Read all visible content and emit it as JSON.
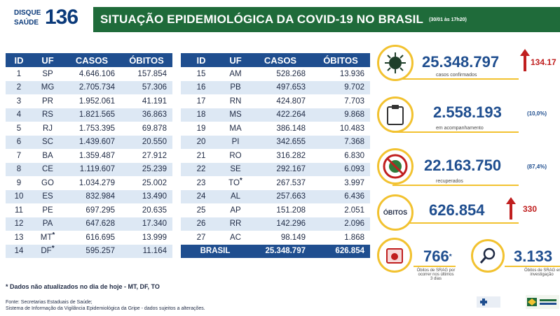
{
  "header": {
    "logo_top": "DISQUE",
    "logo_bottom": "SAÚDE",
    "logo_number": "136",
    "title": "SITUAÇÃO EPIDEMIOLÓGICA DA COVID-19 NO BRASIL",
    "date": "(30/01 às 17h20)"
  },
  "columns": {
    "id": "ID",
    "uf": "UF",
    "casos": "CASOS",
    "obitos": "ÓBITOS"
  },
  "table_left": [
    {
      "id": "1",
      "uf": "SP",
      "casos": "4.646.106",
      "obitos": "157.854",
      "star": ""
    },
    {
      "id": "2",
      "uf": "MG",
      "casos": "2.705.734",
      "obitos": "57.306",
      "star": ""
    },
    {
      "id": "3",
      "uf": "PR",
      "casos": "1.952.061",
      "obitos": "41.191",
      "star": ""
    },
    {
      "id": "4",
      "uf": "RS",
      "casos": "1.821.565",
      "obitos": "36.863",
      "star": ""
    },
    {
      "id": "5",
      "uf": "RJ",
      "casos": "1.753.395",
      "obitos": "69.878",
      "star": ""
    },
    {
      "id": "6",
      "uf": "SC",
      "casos": "1.439.607",
      "obitos": "20.550",
      "star": ""
    },
    {
      "id": "7",
      "uf": "BA",
      "casos": "1.359.487",
      "obitos": "27.912",
      "star": ""
    },
    {
      "id": "8",
      "uf": "CE",
      "casos": "1.119.607",
      "obitos": "25.239",
      "star": ""
    },
    {
      "id": "9",
      "uf": "GO",
      "casos": "1.034.279",
      "obitos": "25.002",
      "star": ""
    },
    {
      "id": "10",
      "uf": "ES",
      "casos": "832.984",
      "obitos": "13.490",
      "star": ""
    },
    {
      "id": "11",
      "uf": "PE",
      "casos": "697.295",
      "obitos": "20.635",
      "star": ""
    },
    {
      "id": "12",
      "uf": "PA",
      "casos": "647.628",
      "obitos": "17.340",
      "star": ""
    },
    {
      "id": "13",
      "uf": "MT",
      "casos": "616.695",
      "obitos": "13.999",
      "star": "*"
    },
    {
      "id": "14",
      "uf": "DF",
      "casos": "595.257",
      "obitos": "11.164",
      "star": "*"
    }
  ],
  "table_right": [
    {
      "id": "15",
      "uf": "AM",
      "casos": "528.268",
      "obitos": "13.936",
      "star": ""
    },
    {
      "id": "16",
      "uf": "PB",
      "casos": "497.653",
      "obitos": "9.702",
      "star": ""
    },
    {
      "id": "17",
      "uf": "RN",
      "casos": "424.807",
      "obitos": "7.703",
      "star": ""
    },
    {
      "id": "18",
      "uf": "MS",
      "casos": "422.264",
      "obitos": "9.868",
      "star": ""
    },
    {
      "id": "19",
      "uf": "MA",
      "casos": "386.148",
      "obitos": "10.483",
      "star": ""
    },
    {
      "id": "20",
      "uf": "PI",
      "casos": "342.655",
      "obitos": "7.368",
      "star": ""
    },
    {
      "id": "21",
      "uf": "RO",
      "casos": "316.282",
      "obitos": "6.830",
      "star": ""
    },
    {
      "id": "22",
      "uf": "SE",
      "casos": "292.167",
      "obitos": "6.093",
      "star": ""
    },
    {
      "id": "23",
      "uf": "TO",
      "casos": "267.537",
      "obitos": "3.997",
      "star": "*"
    },
    {
      "id": "24",
      "uf": "AL",
      "casos": "257.663",
      "obitos": "6.436",
      "star": ""
    },
    {
      "id": "25",
      "uf": "AP",
      "casos": "151.208",
      "obitos": "2.051",
      "star": ""
    },
    {
      "id": "26",
      "uf": "RR",
      "casos": "142.296",
      "obitos": "2.096",
      "star": ""
    },
    {
      "id": "27",
      "uf": "AC",
      "casos": "98.149",
      "obitos": "1.868",
      "star": ""
    }
  ],
  "total": {
    "label": "BRASIL",
    "casos": "25.348.797",
    "obitos": "626.854"
  },
  "stats": {
    "confirmed": {
      "value": "25.348.797",
      "delta": "134.17",
      "label": "casos confirmados"
    },
    "monitoring": {
      "value": "2.558.193",
      "pct": "(10,0%)",
      "label": "em acompanhamento"
    },
    "recovered": {
      "value": "22.163.750",
      "pct": "(87,4%)",
      "label": "recuperados"
    },
    "deaths": {
      "badge": "ÓBITOS",
      "value": "626.854",
      "delta": "330"
    },
    "investigation_recent": {
      "value": "766",
      "star": "*",
      "label1": "Óbitos de SRAG por",
      "label2": "ocorrer nos últimos",
      "label3": "3 dias"
    },
    "investigation": {
      "value": "3.133",
      "label1": "Óbitos de SRAG em",
      "label2": "investigação"
    }
  },
  "footnote": "* Dados não atualizados no dia de hoje - MT, DF, TO",
  "source_line1": "Fonte: Secretarias Estaduais de Saúde;",
  "source_line2": "Sistema de Informação da Vigilância Epidemiológica da Gripe - dados sujeitos a alterações.",
  "colors": {
    "green": "#1f6b3a",
    "blue": "#1f4e8f",
    "yellow": "#f2c230",
    "red": "#c01f1f",
    "row_alt": "#dde8f4"
  }
}
